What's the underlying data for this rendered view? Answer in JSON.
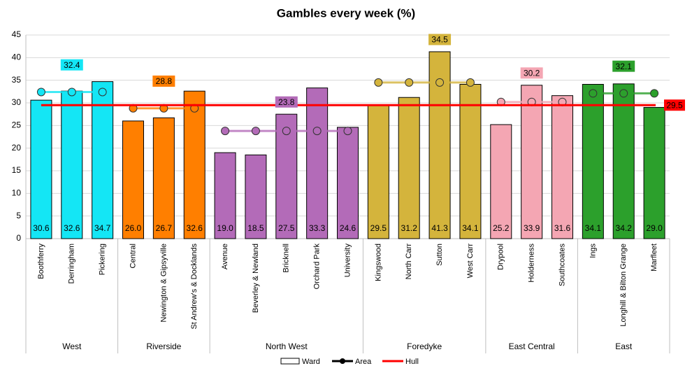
{
  "chart_data": {
    "type": "bar",
    "title": "Gambles every week (%)",
    "ylim": [
      0,
      45
    ],
    "yticks": [
      0,
      5,
      10,
      15,
      20,
      25,
      30,
      35,
      40,
      45
    ],
    "grid": true,
    "legend": [
      "Ward",
      "Area",
      "Hull"
    ],
    "hull_value": 29.5,
    "hull_color": "#ff0000",
    "groups": [
      {
        "name": "West",
        "color": "#14e6f5",
        "area_value": 32.4,
        "categories": [
          "Boothferry",
          "Derringham",
          "Pickering"
        ],
        "values": [
          30.6,
          32.6,
          34.7
        ],
        "value_labels": [
          "30.6",
          "32.6",
          "34.7"
        ]
      },
      {
        "name": "Riverside",
        "color": "#ff7f00",
        "area_value": 28.8,
        "categories": [
          "Central",
          "Newington & Gipsyville",
          "St Andrew's & Docklands"
        ],
        "values": [
          26.0,
          26.7,
          32.6
        ],
        "value_labels": [
          "26.0",
          "26.7",
          "32.6"
        ]
      },
      {
        "name": "North West",
        "color": "#b36bb8",
        "area_value": 23.8,
        "categories": [
          "Avenue",
          "Beverley & Newland",
          "Bricknell",
          "Orchard Park",
          "University"
        ],
        "values": [
          19.0,
          18.5,
          27.5,
          33.3,
          24.6
        ],
        "value_labels": [
          "19.0",
          "18.5",
          "27.5",
          "33.3",
          "24.6"
        ]
      },
      {
        "name": "Foredyke",
        "color": "#d4b43c",
        "area_value": 34.5,
        "categories": [
          "Kingswood",
          "North Carr",
          "Sutton",
          "West Carr"
        ],
        "values": [
          29.5,
          31.2,
          41.3,
          34.1
        ],
        "value_labels": [
          "29.5",
          "31.2",
          "41.3",
          "34.1"
        ]
      },
      {
        "name": "East Central",
        "color": "#f4a6b3",
        "area_value": 30.2,
        "categories": [
          "Drypool",
          "Holderness",
          "Southcoates"
        ],
        "values": [
          25.2,
          33.9,
          31.6
        ],
        "value_labels": [
          "25.2",
          "33.9",
          "31.6"
        ]
      },
      {
        "name": "East",
        "color": "#2ca02c",
        "area_value": 32.1,
        "categories": [
          "Ings",
          "Longhill & Bilton Grange",
          "Marfleet"
        ],
        "values": [
          34.1,
          34.2,
          29.0
        ],
        "value_labels": [
          "34.1",
          "34.2",
          "29.0"
        ]
      }
    ]
  }
}
